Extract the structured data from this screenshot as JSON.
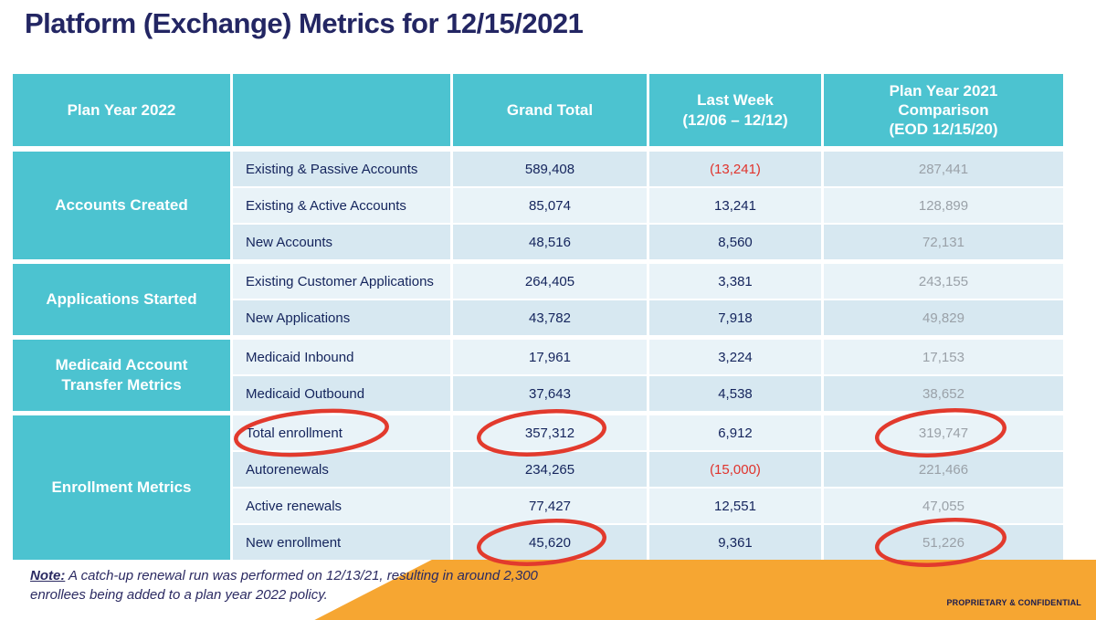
{
  "title": "Platform (Exchange) Metrics for 12/15/2021",
  "colors": {
    "teal": "#4cc3d0",
    "orange": "#f6a632",
    "negative_red": "#e0332c",
    "annotation_red": "#e23a2d",
    "navy_text": "#14245c",
    "comparison_gray": "#9aa1a8"
  },
  "table": {
    "columns": [
      "Plan Year 2022",
      "",
      "Grand Total",
      "Last Week\n(12/06 – 12/12)",
      "Plan Year 2021\nComparison\n(EOD 12/15/20)"
    ],
    "groups": [
      {
        "label": "Accounts Created",
        "rows": [
          {
            "metric": "Existing & Passive Accounts",
            "grand_total": "589,408",
            "last_week": "(13,241)",
            "last_week_negative": true,
            "py2021": "287,441"
          },
          {
            "metric": "Existing & Active Accounts",
            "grand_total": "85,074",
            "last_week": "13,241",
            "last_week_negative": false,
            "py2021": "128,899"
          },
          {
            "metric": "New Accounts",
            "grand_total": "48,516",
            "last_week": "8,560",
            "last_week_negative": false,
            "py2021": "72,131"
          }
        ]
      },
      {
        "label": "Applications Started",
        "rows": [
          {
            "metric": "Existing Customer Applications",
            "grand_total": "264,405",
            "last_week": "3,381",
            "last_week_negative": false,
            "py2021": "243,155"
          },
          {
            "metric": "New Applications",
            "grand_total": "43,782",
            "last_week": "7,918",
            "last_week_negative": false,
            "py2021": "49,829"
          }
        ]
      },
      {
        "label": "Medicaid Account\nTransfer Metrics",
        "rows": [
          {
            "metric": "Medicaid Inbound",
            "grand_total": "17,961",
            "last_week": "3,224",
            "last_week_negative": false,
            "py2021": "17,153"
          },
          {
            "metric": "Medicaid Outbound",
            "grand_total": "37,643",
            "last_week": "4,538",
            "last_week_negative": false,
            "py2021": "38,652"
          }
        ]
      },
      {
        "label": "Enrollment Metrics",
        "rows": [
          {
            "metric": "Total enrollment",
            "grand_total": "357,312",
            "last_week": "6,912",
            "last_week_negative": false,
            "py2021": "319,747",
            "circles": [
              "metric",
              "grand_total",
              "py2021"
            ]
          },
          {
            "metric": "Autorenewals",
            "grand_total": "234,265",
            "last_week": "(15,000)",
            "last_week_negative": true,
            "py2021": "221,466"
          },
          {
            "metric": "Active renewals",
            "grand_total": "77,427",
            "last_week": "12,551",
            "last_week_negative": false,
            "py2021": "47,055"
          },
          {
            "metric": "New enrollment",
            "grand_total": "45,620",
            "last_week": "9,361",
            "last_week_negative": false,
            "py2021": "51,226",
            "circles": [
              "grand_total",
              "py2021"
            ]
          }
        ]
      }
    ]
  },
  "footer": {
    "note_label": "Note:",
    "note_text": "A catch-up renewal run was performed on 12/13/21, resulting in around 2,300 enrollees being added to a plan year 2022 policy.",
    "confidential": "PROPRIETARY & CONFIDENTIAL"
  }
}
